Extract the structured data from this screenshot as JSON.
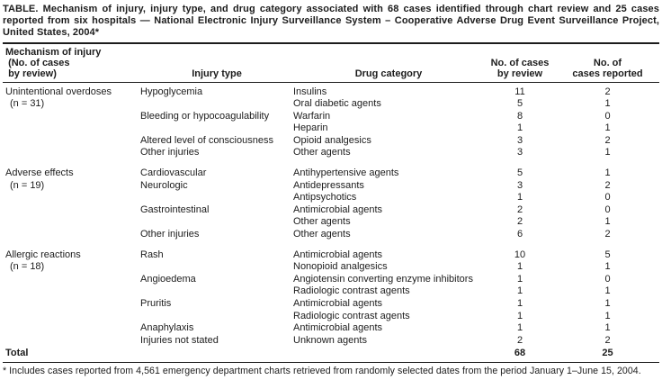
{
  "title": "TABLE. Mechanism of injury, injury type, and drug category associated with 68 cases identified through chart review and 25 cases reported from six hospitals — National Electronic Injury Surveillance System – Cooperative Adverse Drug Event Surveillance Project, United States, 2004*",
  "table": {
    "columns": {
      "mechanism": "Mechanism of injury\n (No. of cases\n by review)",
      "injury_type": "Injury type",
      "drug_category": "Drug category",
      "cases_by_review": "No. of cases\nby review",
      "cases_reported": "No. of\ncases reported"
    },
    "sections": [
      {
        "mechanism": "Unintentional overdoses",
        "n_label": "(n = 31)",
        "rows": [
          {
            "injury_type": "Hypoglycemia",
            "drug_category": "Insulins",
            "cases_by_review": "11",
            "cases_reported": "2"
          },
          {
            "injury_type": "",
            "drug_category": "Oral diabetic agents",
            "cases_by_review": "5",
            "cases_reported": "1"
          },
          {
            "injury_type": "Bleeding or hypocoagulability",
            "drug_category": "Warfarin",
            "cases_by_review": "8",
            "cases_reported": "0"
          },
          {
            "injury_type": "",
            "drug_category": "Heparin",
            "cases_by_review": "1",
            "cases_reported": "1"
          },
          {
            "injury_type": "Altered level of consciousness",
            "drug_category": "Opioid analgesics",
            "cases_by_review": "3",
            "cases_reported": "2"
          },
          {
            "injury_type": "Other injuries",
            "drug_category": "Other agents",
            "cases_by_review": "3",
            "cases_reported": "1"
          }
        ]
      },
      {
        "mechanism": "Adverse effects",
        "n_label": "(n = 19)",
        "rows": [
          {
            "injury_type": "Cardiovascular",
            "drug_category": "Antihypertensive agents",
            "cases_by_review": "5",
            "cases_reported": "1"
          },
          {
            "injury_type": "Neurologic",
            "drug_category": "Antidepressants",
            "cases_by_review": "3",
            "cases_reported": "2"
          },
          {
            "injury_type": "",
            "drug_category": "Antipsychotics",
            "cases_by_review": "1",
            "cases_reported": "0"
          },
          {
            "injury_type": "Gastrointestinal",
            "drug_category": "Antimicrobial agents",
            "cases_by_review": "2",
            "cases_reported": "0"
          },
          {
            "injury_type": "",
            "drug_category": "Other agents",
            "cases_by_review": "2",
            "cases_reported": "1"
          },
          {
            "injury_type": "Other injuries",
            "drug_category": "Other agents",
            "cases_by_review": "6",
            "cases_reported": "2"
          }
        ]
      },
      {
        "mechanism": "Allergic reactions",
        "n_label": "(n = 18)",
        "rows": [
          {
            "injury_type": "Rash",
            "drug_category": "Antimicrobial agents",
            "cases_by_review": "10",
            "cases_reported": "5"
          },
          {
            "injury_type": "",
            "drug_category": "Nonopioid analgesics",
            "cases_by_review": "1",
            "cases_reported": "1"
          },
          {
            "injury_type": "Angioedema",
            "drug_category": "Angiotensin converting enzyme inhibitors",
            "cases_by_review": "1",
            "cases_reported": "0"
          },
          {
            "injury_type": "",
            "drug_category": "Radiologic contrast agents",
            "cases_by_review": "1",
            "cases_reported": "1"
          },
          {
            "injury_type": "Pruritis",
            "drug_category": "Antimicrobial agents",
            "cases_by_review": "1",
            "cases_reported": "1"
          },
          {
            "injury_type": "",
            "drug_category": "Radiologic contrast agents",
            "cases_by_review": "1",
            "cases_reported": "1"
          },
          {
            "injury_type": "Anaphylaxis",
            "drug_category": "Antimicrobial agents",
            "cases_by_review": "1",
            "cases_reported": "1"
          },
          {
            "injury_type": "Injuries not stated",
            "drug_category": "Unknown agents",
            "cases_by_review": "2",
            "cases_reported": "2"
          }
        ]
      }
    ],
    "total": {
      "label": "Total",
      "cases_by_review": "68",
      "cases_reported": "25"
    }
  },
  "footnote": "* Includes cases reported from 4,561 emergency department charts retrieved from randomly selected dates from the period January 1–June 15, 2004.",
  "colors": {
    "background": "#ffffff",
    "text": "#1c1c1c",
    "rule": "#1c1c1c"
  }
}
